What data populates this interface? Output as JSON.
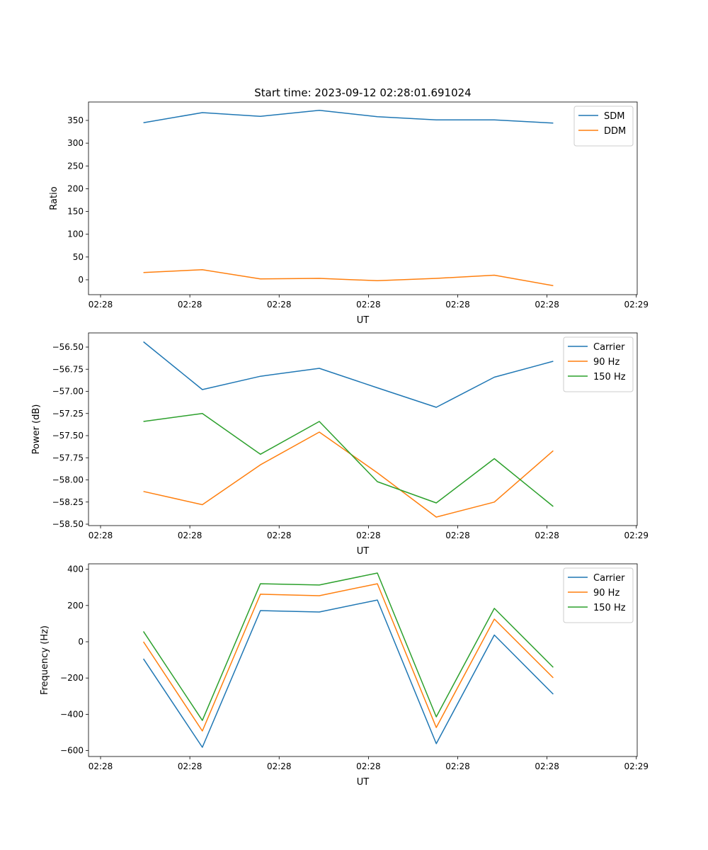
{
  "title": "Start time: 2023-09-12 02:28:01.691024",
  "colors": {
    "blue": "#1f77b4",
    "orange": "#ff7f0e",
    "green": "#2ca02c"
  },
  "chart_data": [
    {
      "type": "line",
      "xlabel": "UT",
      "ylabel": "Ratio",
      "x": [
        4.8,
        11.4,
        17.9,
        24.5,
        31.0,
        37.6,
        44.1,
        50.7
      ],
      "xlim": [
        -1.35,
        60.1
      ],
      "xticks": [
        0,
        10,
        20,
        30,
        40,
        50,
        60
      ],
      "xtick_labels": [
        "02:28",
        "02:28",
        "02:28",
        "02:28",
        "02:28",
        "02:28",
        "02:29"
      ],
      "ylim": [
        -32.7,
        390.4
      ],
      "yticks": [
        0,
        50,
        100,
        150,
        200,
        250,
        300,
        350
      ],
      "ytick_labels": [
        "0",
        "50",
        "100",
        "150",
        "200",
        "250",
        "300",
        "350"
      ],
      "legend": "top-right",
      "series": [
        {
          "name": "SDM",
          "color": "#1f77b4",
          "values": [
            345,
            367,
            359,
            372,
            358,
            351,
            351,
            344
          ]
        },
        {
          "name": "DDM",
          "color": "#ff7f0e",
          "values": [
            16,
            22,
            2,
            3,
            -2,
            3,
            10,
            -13
          ]
        }
      ]
    },
    {
      "type": "line",
      "xlabel": "UT",
      "ylabel": "Power (dB)",
      "x": [
        4.8,
        11.4,
        17.9,
        24.5,
        31.0,
        37.6,
        44.1,
        50.7
      ],
      "xlim": [
        -1.35,
        60.1
      ],
      "xticks": [
        0,
        10,
        20,
        30,
        40,
        50,
        60
      ],
      "xtick_labels": [
        "02:28",
        "02:28",
        "02:28",
        "02:28",
        "02:28",
        "02:28",
        "02:29"
      ],
      "ylim": [
        -58.516,
        -56.34
      ],
      "yticks": [
        -56.5,
        -56.75,
        -57.0,
        -57.25,
        -57.5,
        -57.75,
        -58.0,
        -58.25,
        -58.5
      ],
      "ytick_labels": [
        "−56.50",
        "−56.75",
        "−57.00",
        "−57.25",
        "−57.50",
        "−57.75",
        "−58.00",
        "−58.25",
        "−58.50"
      ],
      "legend": "top-right",
      "series": [
        {
          "name": "Carrier",
          "color": "#1f77b4",
          "values": [
            -56.44,
            -56.98,
            -56.83,
            -56.74,
            -56.96,
            -57.18,
            -56.84,
            -56.66
          ]
        },
        {
          "name": "90 Hz",
          "color": "#ff7f0e",
          "values": [
            -58.13,
            -58.28,
            -57.83,
            -57.46,
            -57.92,
            -58.42,
            -58.25,
            -57.67
          ]
        },
        {
          "name": "150 Hz",
          "color": "#2ca02c",
          "values": [
            -57.34,
            -57.25,
            -57.71,
            -57.34,
            -58.02,
            -58.26,
            -57.76,
            -58.3
          ]
        }
      ]
    },
    {
      "type": "line",
      "xlabel": "UT",
      "ylabel": "Frequency (Hz)",
      "x": [
        4.8,
        11.4,
        17.9,
        24.5,
        31.0,
        37.6,
        44.1,
        50.7
      ],
      "xlim": [
        -1.35,
        60.1
      ],
      "xticks": [
        0,
        10,
        20,
        30,
        40,
        50,
        60
      ],
      "xtick_labels": [
        "02:28",
        "02:28",
        "02:28",
        "02:28",
        "02:28",
        "02:28",
        "02:29"
      ],
      "ylim": [
        -632.8,
        429.7
      ],
      "yticks": [
        400,
        200,
        0,
        -200,
        -400,
        -600
      ],
      "ytick_labels": [
        "400",
        "200",
        "0",
        "−200",
        "−400",
        "−600"
      ],
      "legend": "top-right",
      "series": [
        {
          "name": "Carrier",
          "color": "#1f77b4",
          "values": [
            -94,
            -582,
            172,
            164,
            230,
            -562,
            37,
            -289
          ]
        },
        {
          "name": "90 Hz",
          "color": "#ff7f0e",
          "values": [
            0,
            -492,
            262,
            254,
            320,
            -473,
            125,
            -199
          ]
        },
        {
          "name": "150 Hz",
          "color": "#2ca02c",
          "values": [
            57,
            -434,
            320,
            313,
            379,
            -414,
            184,
            -141
          ]
        }
      ]
    }
  ]
}
